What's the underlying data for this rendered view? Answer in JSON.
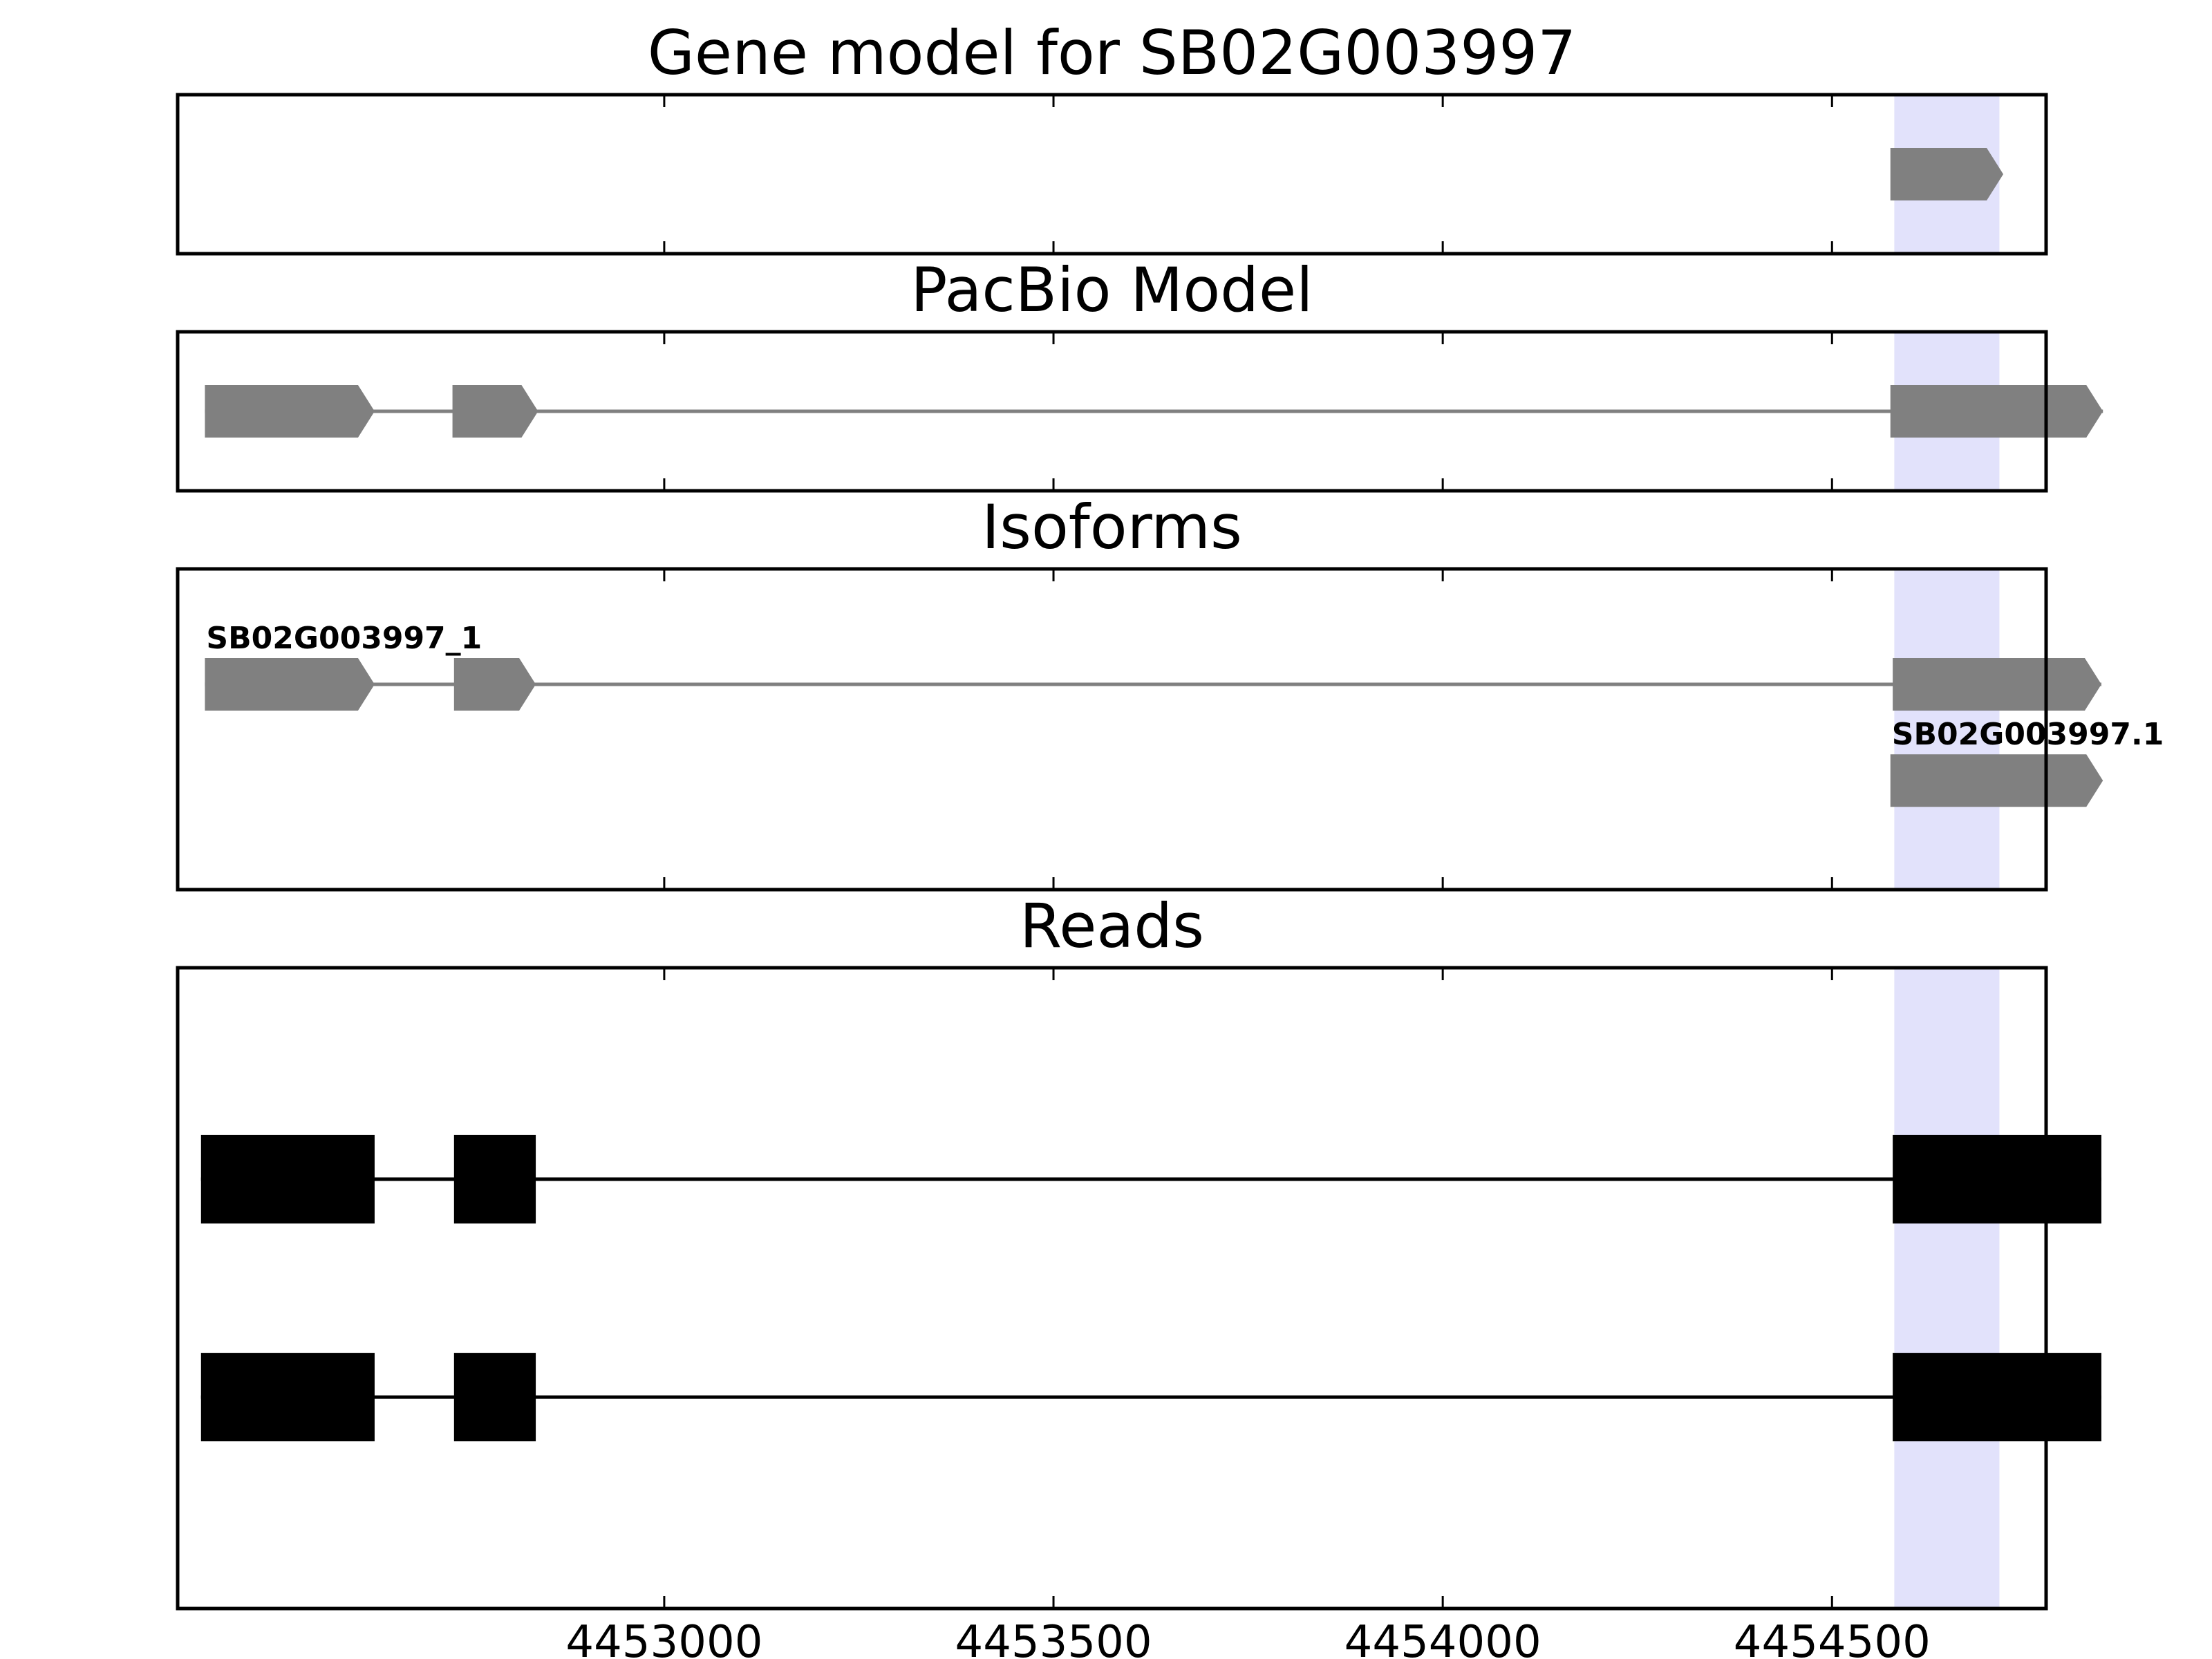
{
  "colors": {
    "feature": "#808080",
    "read": "#000000",
    "highlight": "#e2e2fb",
    "frame": "#000000"
  },
  "chart_data": {
    "type": "gene-track",
    "xlim": [
      4452375,
      4454775
    ],
    "ticks": [
      4453000,
      4453500,
      4454000,
      4454500
    ],
    "tick_labels": [
      "4453000",
      "4453500",
      "4454000",
      "4454500"
    ],
    "highlight": [
      4454580,
      4454715
    ],
    "panels": [
      {
        "id": "gene-model",
        "title": "Gene model for SB02G003997",
        "tracks": [
          {
            "name": "",
            "row": 0.5,
            "exons": [
              [
                4454575,
                4454720
              ]
            ]
          }
        ]
      },
      {
        "id": "pacbio-model",
        "title": "PacBio Model",
        "tracks": [
          {
            "name": "",
            "row": 0.5,
            "exons": [
              [
                4452410,
                4452628
              ],
              [
                4452728,
                4452838
              ],
              [
                4454575,
                4454848
              ]
            ]
          }
        ]
      },
      {
        "id": "isoforms",
        "title": "Isoforms",
        "tracks": [
          {
            "name": "SB02G003997_1",
            "row": 0.36,
            "exons": [
              [
                4452410,
                4452628
              ],
              [
                4452730,
                4452835
              ],
              [
                4454578,
                4454846
              ]
            ]
          },
          {
            "name": "SB02G003997.1",
            "row": 0.66,
            "exons": [
              [
                4454575,
                4454848
              ]
            ]
          }
        ]
      },
      {
        "id": "reads",
        "title": "Reads",
        "tracks": [
          {
            "name": "",
            "row": 0.33,
            "exons": [
              [
                4452405,
                4452628
              ],
              [
                4452730,
                4452835
              ],
              [
                4454578,
                4454846
              ]
            ]
          },
          {
            "name": "",
            "row": 0.67,
            "exons": [
              [
                4452405,
                4452628
              ],
              [
                4452730,
                4452835
              ],
              [
                4454578,
                4454846
              ]
            ]
          }
        ]
      }
    ]
  }
}
